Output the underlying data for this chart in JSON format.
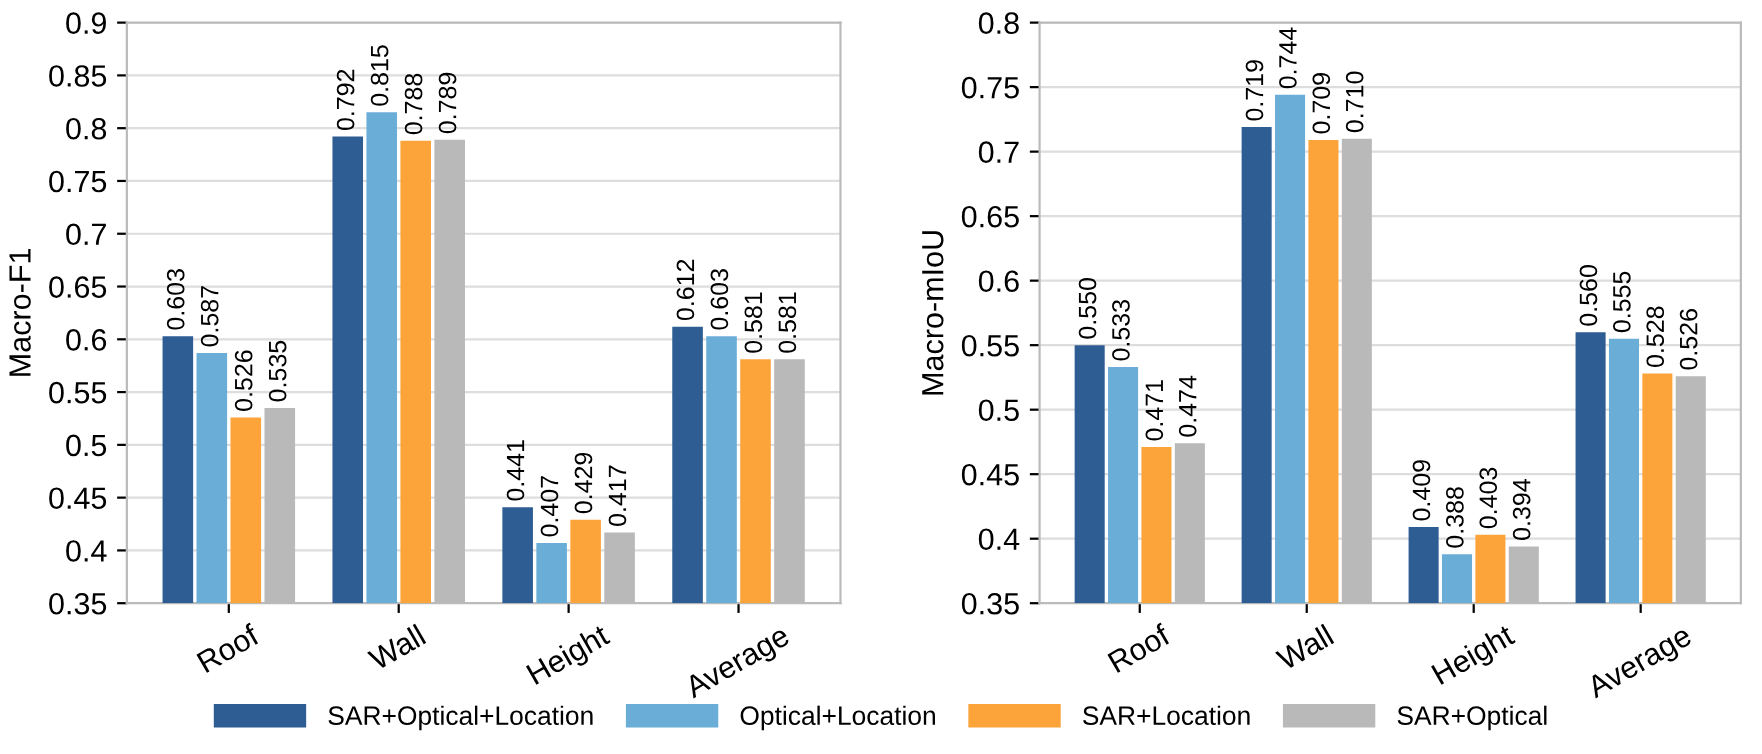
{
  "chart_data": [
    {
      "type": "bar",
      "ylabel": "Macro-F1",
      "categories": [
        "Roof",
        "Wall",
        "Height",
        "Average"
      ],
      "ylim": [
        0.35,
        0.9
      ],
      "yticks": [
        0.35,
        0.4,
        0.45,
        0.5,
        0.55,
        0.6,
        0.65,
        0.7,
        0.75,
        0.8,
        0.85,
        0.9
      ],
      "grid": "y",
      "legend": "bottom",
      "series": [
        {
          "name": "SAR+Optical+Location",
          "color": "#2e5d94",
          "values": [
            0.603,
            0.792,
            0.441,
            0.612
          ],
          "value_labels": [
            "0.603",
            "0.792",
            "0.441",
            "0.612"
          ]
        },
        {
          "name": "Optical+Location",
          "color": "#6aaed8",
          "values": [
            0.587,
            0.815,
            0.407,
            0.603
          ],
          "value_labels": [
            "0.587",
            "0.815",
            "0.407",
            "0.603"
          ]
        },
        {
          "name": "SAR+Location",
          "color": "#fca43a",
          "values": [
            0.526,
            0.788,
            0.429,
            0.581
          ],
          "value_labels": [
            "0.526",
            "0.788",
            "0.429",
            "0.581"
          ]
        },
        {
          "name": "SAR+Optical",
          "color": "#b9b9b9",
          "values": [
            0.535,
            0.789,
            0.417,
            0.581
          ],
          "value_labels": [
            "0.535",
            "0.789",
            "0.417",
            "0.581"
          ]
        }
      ]
    },
    {
      "type": "bar",
      "ylabel": "Macro-mIoU",
      "categories": [
        "Roof",
        "Wall",
        "Height",
        "Average"
      ],
      "ylim": [
        0.35,
        0.8
      ],
      "yticks": [
        0.35,
        0.4,
        0.45,
        0.5,
        0.55,
        0.6,
        0.65,
        0.7,
        0.75,
        0.8
      ],
      "grid": "y",
      "series": [
        {
          "color": "#2e5d94",
          "values": [
            0.55,
            0.719,
            0.409,
            0.56
          ],
          "value_labels": [
            "0.550",
            "0.719",
            "0.409",
            "0.560"
          ]
        },
        {
          "color": "#6aaed8",
          "values": [
            0.533,
            0.744,
            0.388,
            0.555
          ],
          "value_labels": [
            "0.533",
            "0.744",
            "0.388",
            "0.555"
          ]
        },
        {
          "color": "#fca43a",
          "values": [
            0.471,
            0.709,
            0.403,
            0.528
          ],
          "value_labels": [
            "0.471",
            "0.709",
            "0.403",
            "0.528"
          ]
        },
        {
          "color": "#b9b9b9",
          "values": [
            0.474,
            0.71,
            0.394,
            0.526
          ],
          "value_labels": [
            "0.474",
            "0.710",
            "0.394",
            "0.526"
          ]
        }
      ]
    }
  ]
}
